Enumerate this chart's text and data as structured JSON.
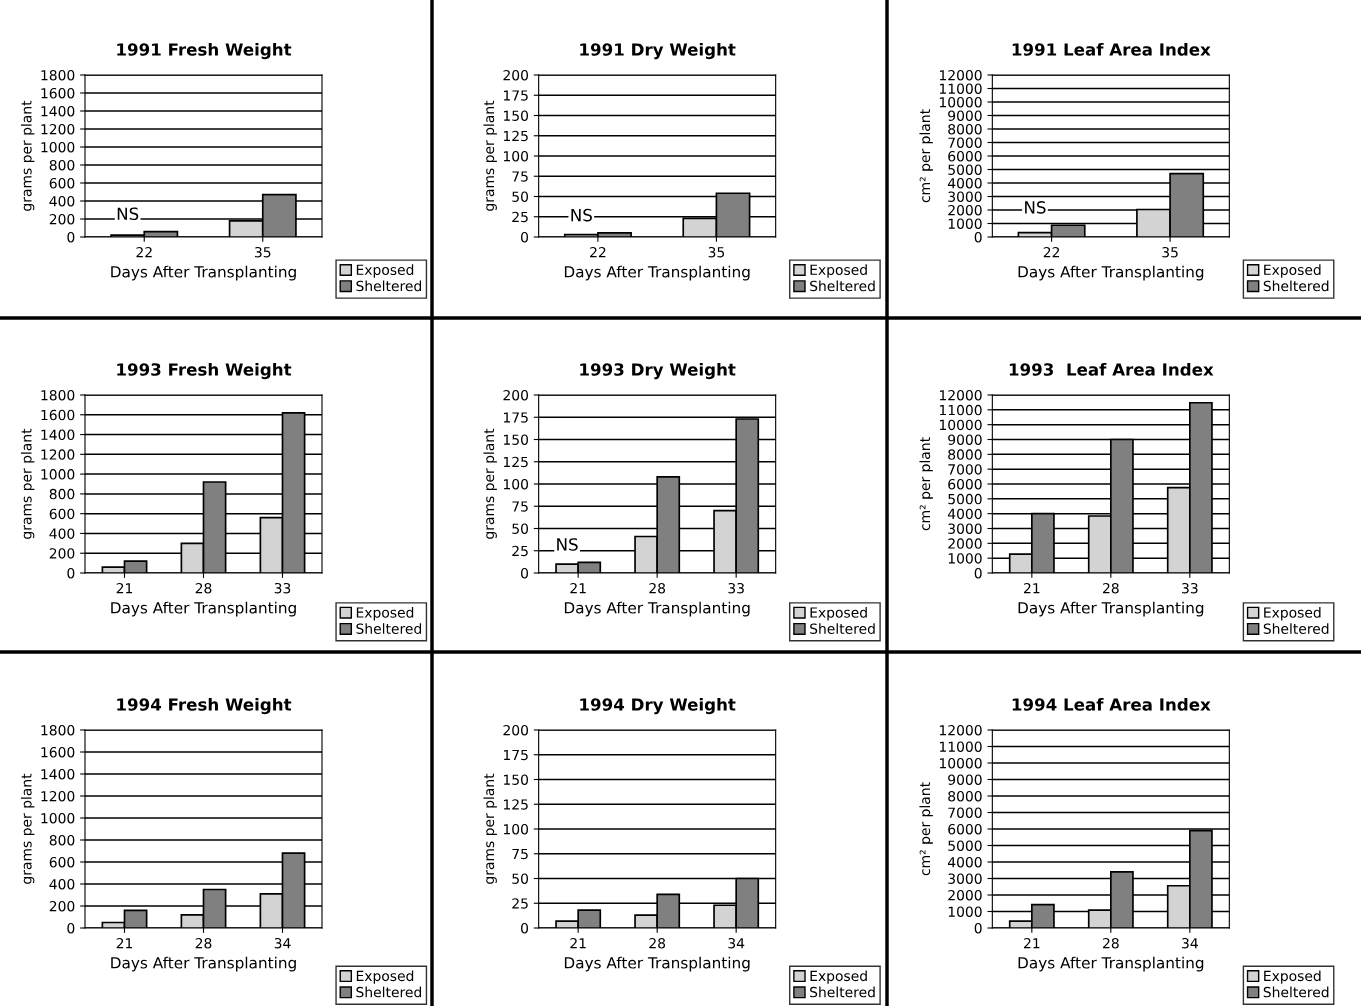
{
  "chart_data": [
    {
      "type": "bar",
      "title": "1991 Fresh Weight",
      "xlabel": "Days After Transplanting",
      "ylabel": "grams per plant",
      "categories": [
        "22",
        "35"
      ],
      "series": [
        {
          "name": "Exposed",
          "color": "#d3d3d3",
          "values": [
            20,
            180
          ]
        },
        {
          "name": "Sheltered",
          "color": "#808080",
          "values": [
            60,
            470
          ]
        }
      ],
      "ylim": [
        0,
        1800
      ],
      "yticks": [
        0,
        200,
        400,
        600,
        800,
        1000,
        1200,
        1400,
        1600,
        1800
      ],
      "grid": "y",
      "legend": "bottom right",
      "annotations": [
        {
          "text": "NS",
          "x": "22",
          "y": 60
        }
      ]
    },
    {
      "type": "bar",
      "title": "1991 Dry Weight",
      "xlabel": "Days After Transplanting",
      "ylabel": "grams per plant",
      "categories": [
        "22",
        "35"
      ],
      "series": [
        {
          "name": "Exposed",
          "color": "#d3d3d3",
          "values": [
            3,
            23
          ]
        },
        {
          "name": "Sheltered",
          "color": "#808080",
          "values": [
            5,
            54
          ]
        }
      ],
      "ylim": [
        0,
        200
      ],
      "yticks": [
        0,
        25,
        50,
        75,
        100,
        125,
        150,
        175,
        200
      ],
      "grid": "y",
      "legend": "bottom right",
      "annotations": [
        {
          "text": "NS",
          "x": "22",
          "y": 5
        }
      ]
    },
    {
      "type": "bar",
      "title": "1991 Leaf Area Index",
      "xlabel": "Days After Transplanting",
      "ylabel": "cm² per plant",
      "categories": [
        "22",
        "35"
      ],
      "series": [
        {
          "name": "Exposed",
          "color": "#d3d3d3",
          "values": [
            330,
            2040
          ]
        },
        {
          "name": "Sheltered",
          "color": "#808080",
          "values": [
            870,
            4700
          ]
        }
      ],
      "ylim": [
        0,
        12000
      ],
      "yticks": [
        0,
        1000,
        2000,
        3000,
        4000,
        5000,
        6000,
        7000,
        8000,
        9000,
        10000,
        11000,
        12000
      ],
      "grid": "y",
      "legend": "bottom right",
      "annotations": [
        {
          "text": "NS",
          "x": "22",
          "y": 870
        }
      ]
    },
    {
      "type": "bar",
      "title": "1993 Fresh Weight",
      "xlabel": "Days After Transplanting",
      "ylabel": "grams per plant",
      "categories": [
        "21",
        "28",
        "33"
      ],
      "series": [
        {
          "name": "Exposed",
          "color": "#d3d3d3",
          "values": [
            60,
            300,
            560
          ]
        },
        {
          "name": "Sheltered",
          "color": "#808080",
          "values": [
            120,
            920,
            1620
          ]
        }
      ],
      "ylim": [
        0,
        1800
      ],
      "yticks": [
        0,
        200,
        400,
        600,
        800,
        1000,
        1200,
        1400,
        1600,
        1800
      ],
      "grid": "y",
      "legend": "bottom right"
    },
    {
      "type": "bar",
      "title": "1993 Dry Weight",
      "xlabel": "Days After Transplanting",
      "ylabel": "grams per plant",
      "categories": [
        "21",
        "28",
        "33"
      ],
      "series": [
        {
          "name": "Exposed",
          "color": "#d3d3d3",
          "values": [
            10,
            41,
            70
          ]
        },
        {
          "name": "Sheltered",
          "color": "#808080",
          "values": [
            12,
            108,
            173
          ]
        }
      ],
      "ylim": [
        0,
        200
      ],
      "yticks": [
        0,
        25,
        50,
        75,
        100,
        125,
        150,
        175,
        200
      ],
      "grid": "y",
      "legend": "bottom right",
      "annotations": [
        {
          "text": "NS",
          "x": "21",
          "y": 12
        }
      ]
    },
    {
      "type": "bar",
      "title": "1993  Leaf Area Index",
      "xlabel": "Days After Transplanting",
      "ylabel": "cm² per plant",
      "categories": [
        "21",
        "28",
        "33"
      ],
      "series": [
        {
          "name": "Exposed",
          "color": "#d3d3d3",
          "values": [
            1270,
            3840,
            5760
          ]
        },
        {
          "name": "Sheltered",
          "color": "#808080",
          "values": [
            4000,
            9000,
            11480
          ]
        }
      ],
      "ylim": [
        0,
        12000
      ],
      "yticks": [
        0,
        1000,
        2000,
        3000,
        4000,
        5000,
        6000,
        7000,
        8000,
        9000,
        10000,
        11000,
        12000
      ],
      "grid": "y",
      "legend": "bottom right"
    },
    {
      "type": "bar",
      "title": "1994 Fresh Weight",
      "xlabel": "Days After Transplanting",
      "ylabel": "grams per plant",
      "categories": [
        "21",
        "28",
        "34"
      ],
      "series": [
        {
          "name": "Exposed",
          "color": "#d3d3d3",
          "values": [
            50,
            120,
            310
          ]
        },
        {
          "name": "Sheltered",
          "color": "#808080",
          "values": [
            160,
            350,
            680
          ]
        }
      ],
      "ylim": [
        0,
        1800
      ],
      "yticks": [
        0,
        200,
        400,
        600,
        800,
        1000,
        1200,
        1400,
        1600,
        1800
      ],
      "grid": "y",
      "legend": "bottom right"
    },
    {
      "type": "bar",
      "title": "1994 Dry Weight",
      "xlabel": "Days After Transplanting",
      "ylabel": "grams per plant",
      "categories": [
        "21",
        "28",
        "34"
      ],
      "series": [
        {
          "name": "Exposed",
          "color": "#d3d3d3",
          "values": [
            7,
            13,
            23
          ]
        },
        {
          "name": "Sheltered",
          "color": "#808080",
          "values": [
            18,
            34,
            50
          ]
        }
      ],
      "ylim": [
        0,
        200
      ],
      "yticks": [
        0,
        25,
        50,
        75,
        100,
        125,
        150,
        175,
        200
      ],
      "grid": "y",
      "legend": "bottom right"
    },
    {
      "type": "bar",
      "title": "1994 Leaf Area Index",
      "xlabel": "Days After Transplanting",
      "ylabel": "cm² per plant",
      "categories": [
        "21",
        "28",
        "34"
      ],
      "series": [
        {
          "name": "Exposed",
          "color": "#d3d3d3",
          "values": [
            420,
            1080,
            2560
          ]
        },
        {
          "name": "Sheltered",
          "color": "#808080",
          "values": [
            1420,
            3400,
            5900
          ]
        }
      ],
      "ylim": [
        0,
        12000
      ],
      "yticks": [
        0,
        1000,
        2000,
        3000,
        4000,
        5000,
        6000,
        7000,
        8000,
        9000,
        10000,
        11000,
        12000
      ],
      "grid": "y",
      "legend": "bottom right"
    }
  ]
}
